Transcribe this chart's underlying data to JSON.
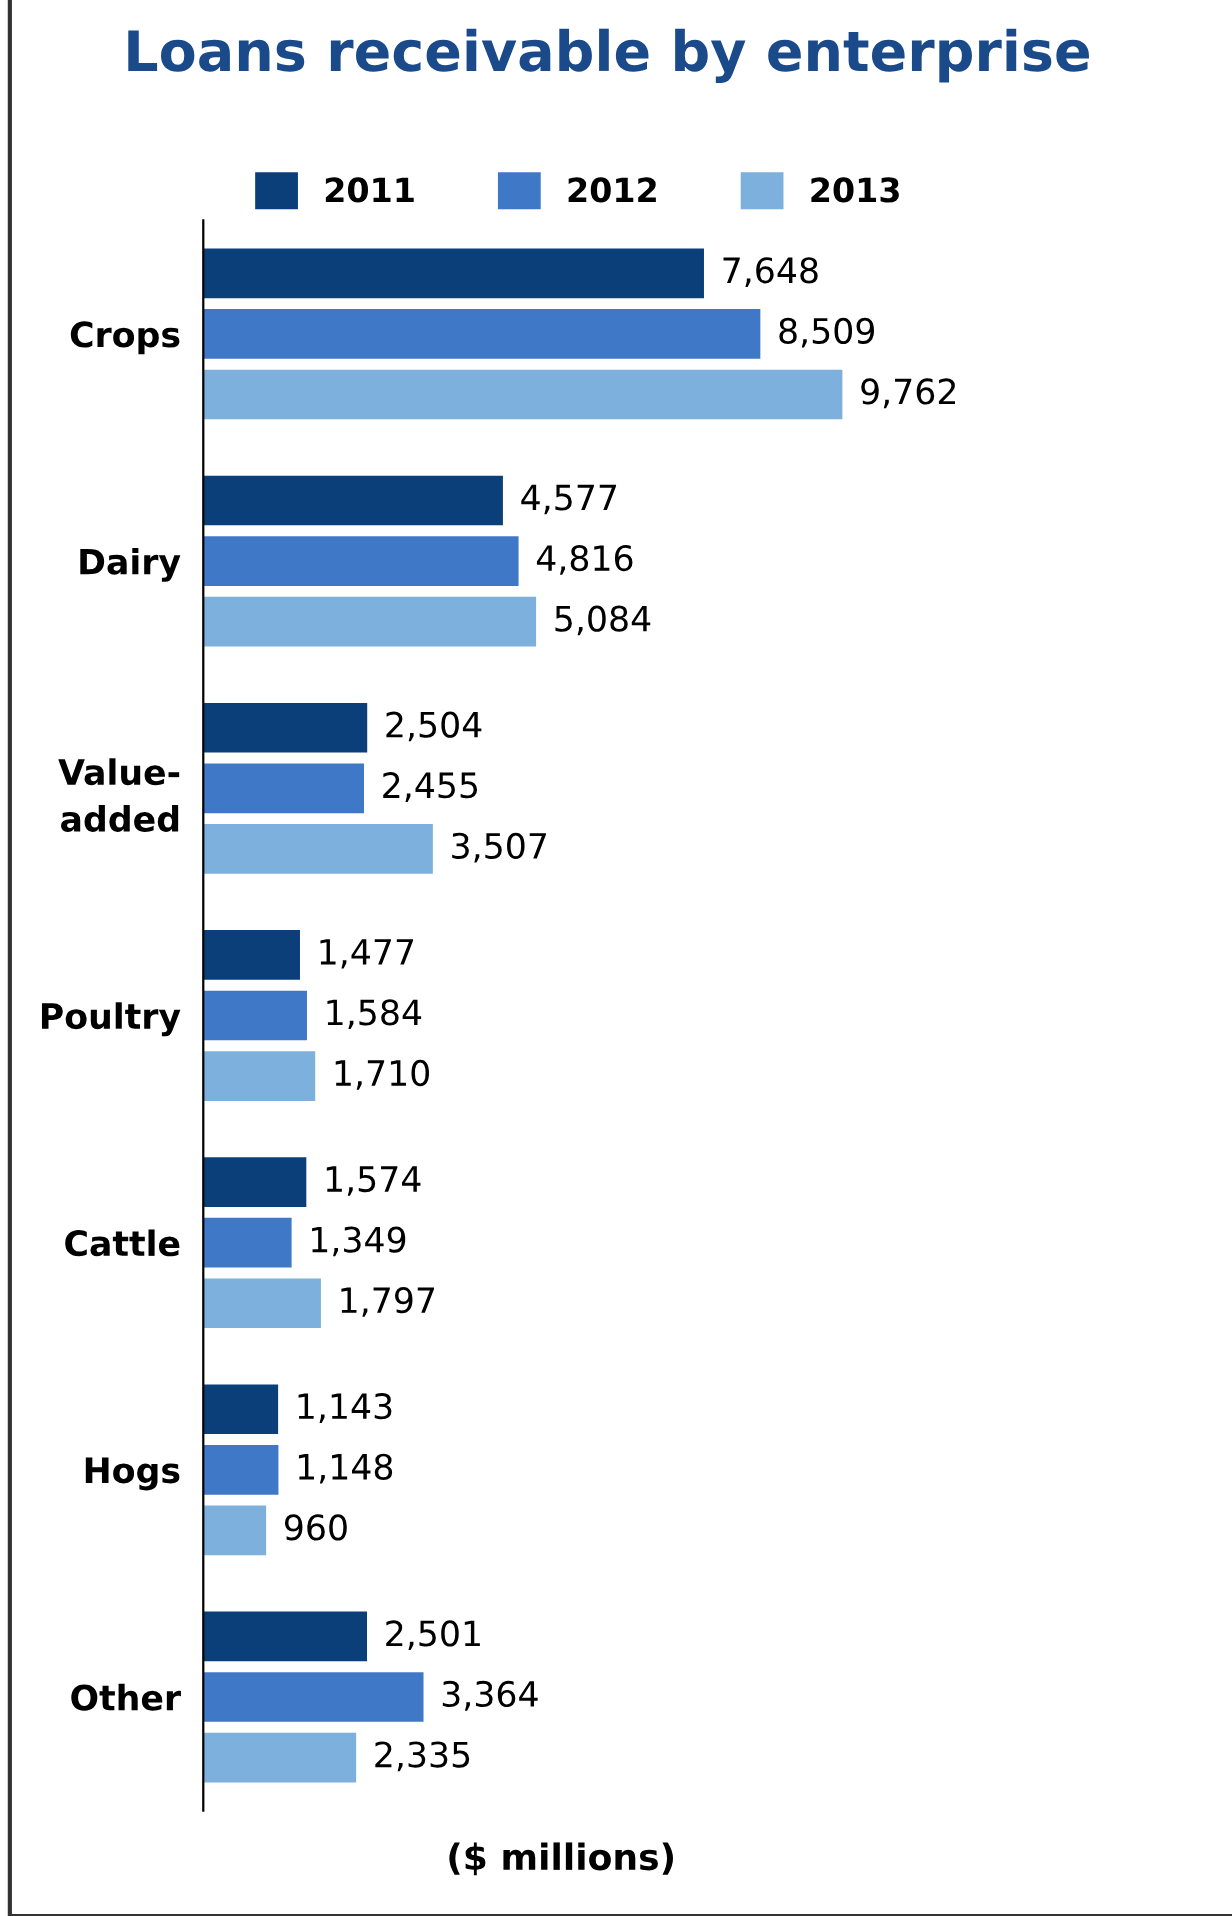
{
  "chart_data": {
    "type": "bar",
    "orientation": "horizontal",
    "title": "Loans receivable by enterprise",
    "xlabel": "($ millions)",
    "categories": [
      "Crops",
      "Dairy",
      "Value-\nadded",
      "Poultry",
      "Cattle",
      "Hogs",
      "Other"
    ],
    "series": [
      {
        "name": "2011",
        "color": "#0b3f7a",
        "values": [
          7648,
          4577,
          2504,
          1477,
          1574,
          1143,
          2501
        ],
        "value_labels": [
          "7,648",
          "4,577",
          "2,504",
          "1,477",
          "1,574",
          "1,143",
          "2,501"
        ]
      },
      {
        "name": "2012",
        "color": "#3f78c6",
        "values": [
          8509,
          4816,
          2455,
          1584,
          1349,
          1148,
          3364
        ],
        "value_labels": [
          "8,509",
          "4,816",
          "2,455",
          "1,584",
          "1,349",
          "1,148",
          "3,364"
        ]
      },
      {
        "name": "2013",
        "color": "#7db0dc",
        "values": [
          9762,
          5084,
          3507,
          1710,
          1797,
          960,
          2335
        ],
        "value_labels": [
          "9,762",
          "5,084",
          "3,507",
          "1,710",
          "1,797",
          "960",
          "2,335"
        ]
      }
    ],
    "legend": "top",
    "tick_labels": "y"
  }
}
